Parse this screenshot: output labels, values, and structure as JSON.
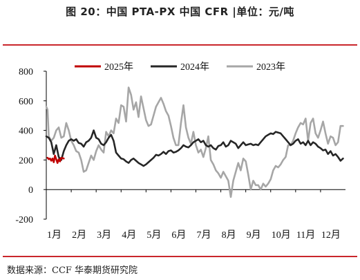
{
  "header": {
    "title": "图 20：中国 PTA-PX 中国 CFR |单位：元/吨"
  },
  "footer": {
    "source": "数据来源：CCF  华泰期货研究院"
  },
  "chart_data": {
    "type": "line",
    "title": "图 20：中国 PTA-PX 中国 CFR |单位：元/吨",
    "ylim": [
      -200,
      800
    ],
    "yticks": [
      -200,
      0,
      200,
      400,
      600,
      800
    ],
    "x_range": [
      1,
      13
    ],
    "x_tick_positions": [
      1,
      2,
      3,
      4,
      5,
      6,
      7,
      8,
      9,
      10,
      11,
      12
    ],
    "x_tick_labels": [
      "1月",
      "2月",
      "3月",
      "4月",
      "5月",
      "6月",
      "7月",
      "8月",
      "9月",
      "10月",
      "11月",
      "12月"
    ],
    "legend_position": "top",
    "grid": false,
    "series": [
      {
        "name": "2025年",
        "color": "#c00000",
        "points": [
          [
            1.05,
            215
          ],
          [
            1.1,
            205
          ],
          [
            1.15,
            210
          ],
          [
            1.2,
            195
          ],
          [
            1.25,
            210
          ],
          [
            1.3,
            185
          ],
          [
            1.35,
            230
          ],
          [
            1.4,
            205
          ],
          [
            1.45,
            180
          ],
          [
            1.5,
            205
          ],
          [
            1.55,
            190
          ],
          [
            1.6,
            215
          ],
          [
            1.7,
            210
          ]
        ]
      },
      {
        "name": "2024年",
        "color": "#262626",
        "points": [
          [
            1.0,
            360
          ],
          [
            1.1,
            350
          ],
          [
            1.2,
            320
          ],
          [
            1.3,
            240
          ],
          [
            1.4,
            300
          ],
          [
            1.5,
            220
          ],
          [
            1.6,
            200
          ],
          [
            1.7,
            260
          ],
          [
            1.8,
            300
          ],
          [
            1.9,
            330
          ],
          [
            2.0,
            340
          ],
          [
            2.1,
            330
          ],
          [
            2.2,
            340
          ],
          [
            2.3,
            315
          ],
          [
            2.4,
            310
          ],
          [
            2.5,
            290
          ],
          [
            2.6,
            320
          ],
          [
            2.7,
            330
          ],
          [
            2.8,
            350
          ],
          [
            2.9,
            400
          ],
          [
            3.0,
            350
          ],
          [
            3.1,
            340
          ],
          [
            3.2,
            310
          ],
          [
            3.3,
            300
          ],
          [
            3.4,
            320
          ],
          [
            3.5,
            350
          ],
          [
            3.6,
            370
          ],
          [
            3.7,
            330
          ],
          [
            3.8,
            250
          ],
          [
            3.9,
            230
          ],
          [
            4.0,
            210
          ],
          [
            4.1,
            205
          ],
          [
            4.2,
            190
          ],
          [
            4.3,
            180
          ],
          [
            4.4,
            200
          ],
          [
            4.5,
            210
          ],
          [
            4.6,
            195
          ],
          [
            4.7,
            180
          ],
          [
            4.8,
            170
          ],
          [
            4.9,
            160
          ],
          [
            5.0,
            170
          ],
          [
            5.1,
            185
          ],
          [
            5.2,
            200
          ],
          [
            5.3,
            215
          ],
          [
            5.4,
            235
          ],
          [
            5.5,
            230
          ],
          [
            5.6,
            240
          ],
          [
            5.7,
            255
          ],
          [
            5.8,
            240
          ],
          [
            5.9,
            260
          ],
          [
            6.0,
            265
          ],
          [
            6.1,
            250
          ],
          [
            6.2,
            255
          ],
          [
            6.3,
            265
          ],
          [
            6.4,
            280
          ],
          [
            6.5,
            300
          ],
          [
            6.6,
            290
          ],
          [
            6.7,
            285
          ],
          [
            6.8,
            300
          ],
          [
            6.9,
            320
          ],
          [
            7.0,
            330
          ],
          [
            7.1,
            340
          ],
          [
            7.2,
            320
          ],
          [
            7.3,
            330
          ],
          [
            7.4,
            300
          ],
          [
            7.5,
            290
          ],
          [
            7.6,
            300
          ],
          [
            7.7,
            280
          ],
          [
            7.8,
            270
          ],
          [
            7.9,
            295
          ],
          [
            8.0,
            300
          ],
          [
            8.1,
            320
          ],
          [
            8.2,
            290
          ],
          [
            8.3,
            300
          ],
          [
            8.4,
            330
          ],
          [
            8.5,
            320
          ],
          [
            8.6,
            310
          ],
          [
            8.7,
            280
          ],
          [
            8.8,
            300
          ],
          [
            8.9,
            320
          ],
          [
            9.0,
            300
          ],
          [
            9.1,
            305
          ],
          [
            9.2,
            310
          ],
          [
            9.3,
            300
          ],
          [
            9.4,
            305
          ],
          [
            9.5,
            300
          ],
          [
            9.6,
            320
          ],
          [
            9.7,
            340
          ],
          [
            9.8,
            360
          ],
          [
            9.9,
            370
          ],
          [
            10.0,
            380
          ],
          [
            10.1,
            375
          ],
          [
            10.2,
            390
          ],
          [
            10.3,
            385
          ],
          [
            10.4,
            380
          ],
          [
            10.5,
            360
          ],
          [
            10.6,
            340
          ],
          [
            10.7,
            320
          ],
          [
            10.8,
            300
          ],
          [
            10.9,
            310
          ],
          [
            11.0,
            330
          ],
          [
            11.1,
            340
          ],
          [
            11.2,
            310
          ],
          [
            11.3,
            320
          ],
          [
            11.4,
            300
          ],
          [
            11.5,
            330
          ],
          [
            11.6,
            300
          ],
          [
            11.7,
            320
          ],
          [
            11.8,
            310
          ],
          [
            11.9,
            290
          ],
          [
            12.0,
            280
          ],
          [
            12.1,
            265
          ],
          [
            12.2,
            270
          ],
          [
            12.3,
            240
          ],
          [
            12.4,
            260
          ],
          [
            12.5,
            230
          ],
          [
            12.6,
            240
          ],
          [
            12.7,
            220
          ],
          [
            12.8,
            195
          ],
          [
            12.9,
            210
          ]
        ]
      },
      {
        "name": "2023年",
        "color": "#a6a6a6",
        "points": [
          [
            1.0,
            560
          ],
          [
            1.05,
            540
          ],
          [
            1.1,
            360
          ],
          [
            1.2,
            330
          ],
          [
            1.3,
            350
          ],
          [
            1.4,
            400
          ],
          [
            1.5,
            420
          ],
          [
            1.6,
            350
          ],
          [
            1.7,
            360
          ],
          [
            1.8,
            450
          ],
          [
            1.9,
            400
          ],
          [
            2.0,
            330
          ],
          [
            2.1,
            300
          ],
          [
            2.2,
            260
          ],
          [
            2.3,
            250
          ],
          [
            2.4,
            200
          ],
          [
            2.5,
            120
          ],
          [
            2.6,
            130
          ],
          [
            2.7,
            180
          ],
          [
            2.8,
            230
          ],
          [
            2.9,
            200
          ],
          [
            3.0,
            260
          ],
          [
            3.1,
            300
          ],
          [
            3.2,
            270
          ],
          [
            3.3,
            250
          ],
          [
            3.4,
            390
          ],
          [
            3.5,
            360
          ],
          [
            3.6,
            400
          ],
          [
            3.7,
            380
          ],
          [
            3.8,
            480
          ],
          [
            3.9,
            450
          ],
          [
            4.0,
            570
          ],
          [
            4.1,
            560
          ],
          [
            4.2,
            460
          ],
          [
            4.3,
            690
          ],
          [
            4.4,
            640
          ],
          [
            4.5,
            540
          ],
          [
            4.6,
            590
          ],
          [
            4.7,
            490
          ],
          [
            4.8,
            630
          ],
          [
            4.9,
            550
          ],
          [
            5.0,
            470
          ],
          [
            5.1,
            430
          ],
          [
            5.2,
            440
          ],
          [
            5.3,
            500
          ],
          [
            5.4,
            560
          ],
          [
            5.5,
            590
          ],
          [
            5.6,
            620
          ],
          [
            5.7,
            580
          ],
          [
            5.8,
            530
          ],
          [
            5.9,
            500
          ],
          [
            6.0,
            430
          ],
          [
            6.1,
            350
          ],
          [
            6.2,
            300
          ],
          [
            6.3,
            300
          ],
          [
            6.4,
            450
          ],
          [
            6.5,
            570
          ],
          [
            6.6,
            420
          ],
          [
            6.7,
            350
          ],
          [
            6.8,
            310
          ],
          [
            6.9,
            390
          ],
          [
            7.0,
            300
          ],
          [
            7.1,
            250
          ],
          [
            7.2,
            270
          ],
          [
            7.3,
            220
          ],
          [
            7.4,
            280
          ],
          [
            7.5,
            360
          ],
          [
            7.6,
            200
          ],
          [
            7.7,
            170
          ],
          [
            7.8,
            130
          ],
          [
            7.9,
            110
          ],
          [
            8.0,
            80
          ],
          [
            8.1,
            120
          ],
          [
            8.2,
            90
          ],
          [
            8.3,
            60
          ],
          [
            8.4,
            -50
          ],
          [
            8.5,
            60
          ],
          [
            8.6,
            120
          ],
          [
            8.7,
            180
          ],
          [
            8.8,
            130
          ],
          [
            8.9,
            210
          ],
          [
            9.0,
            190
          ],
          [
            9.1,
            100
          ],
          [
            9.2,
            0
          ],
          [
            9.3,
            60
          ],
          [
            9.4,
            30
          ],
          [
            9.5,
            30
          ],
          [
            9.6,
            0
          ],
          [
            9.7,
            40
          ],
          [
            9.8,
            20
          ],
          [
            9.9,
            40
          ],
          [
            10.0,
            70
          ],
          [
            10.1,
            130
          ],
          [
            10.2,
            160
          ],
          [
            10.3,
            150
          ],
          [
            10.4,
            170
          ],
          [
            10.5,
            200
          ],
          [
            10.6,
            220
          ],
          [
            10.7,
            300
          ],
          [
            10.8,
            300
          ],
          [
            10.9,
            330
          ],
          [
            11.0,
            380
          ],
          [
            11.1,
            420
          ],
          [
            11.2,
            450
          ],
          [
            11.3,
            440
          ],
          [
            11.4,
            480
          ],
          [
            11.5,
            330
          ],
          [
            11.6,
            450
          ],
          [
            11.7,
            480
          ],
          [
            11.8,
            380
          ],
          [
            11.9,
            350
          ],
          [
            12.0,
            400
          ],
          [
            12.1,
            460
          ],
          [
            12.2,
            380
          ],
          [
            12.3,
            310
          ],
          [
            12.4,
            360
          ],
          [
            12.5,
            350
          ],
          [
            12.6,
            300
          ],
          [
            12.7,
            320
          ],
          [
            12.8,
            430
          ],
          [
            12.9,
            430
          ]
        ]
      }
    ]
  }
}
